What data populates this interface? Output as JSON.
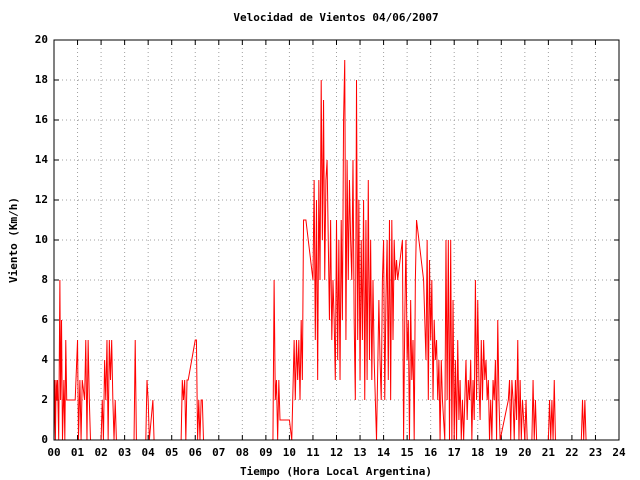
{
  "chart_data": {
    "type": "line",
    "title": "Velocidad de Vientos 04/06/2007",
    "x_label": "Tiempo (Hora Local Argentina)",
    "y_label": "Viento (Km/h)",
    "color": "#ff0000",
    "grid": true,
    "xlim": [
      0,
      24
    ],
    "ylim": [
      0,
      20
    ],
    "xticks": [
      {
        "value": 0,
        "label": "00"
      },
      {
        "value": 1,
        "label": "01"
      },
      {
        "value": 2,
        "label": "02"
      },
      {
        "value": 3,
        "label": "03"
      },
      {
        "value": 4,
        "label": "04"
      },
      {
        "value": 5,
        "label": "05"
      },
      {
        "value": 6,
        "label": "06"
      },
      {
        "value": 7,
        "label": "07"
      },
      {
        "value": 8,
        "label": "08"
      },
      {
        "value": 9,
        "label": "09"
      },
      10,
      11,
      12,
      13,
      14,
      15,
      16,
      17,
      18,
      19,
      20,
      21,
      22,
      23,
      24
    ],
    "yticks": [
      0,
      2,
      4,
      6,
      8,
      10,
      12,
      14,
      16,
      18,
      20
    ],
    "x": [
      0,
      0.03,
      0.06,
      0.09,
      0.12,
      0.15,
      0.2,
      0.25,
      0.28,
      0.32,
      0.36,
      0.42,
      0.46,
      0.5,
      0.54,
      0.7,
      0.9,
      1.0,
      1.04,
      1.1,
      1.15,
      1.2,
      1.3,
      1.35,
      1.4,
      1.45,
      1.5,
      1.55,
      1.6,
      2.0,
      2.05,
      2.1,
      2.15,
      2.2,
      2.25,
      2.3,
      2.35,
      2.4,
      2.45,
      2.5,
      2.55,
      2.6,
      2.65,
      3.0,
      3.4,
      3.45,
      3.5,
      3.9,
      3.95,
      4.0,
      4.05,
      4.2,
      4.25,
      5.4,
      5.45,
      5.5,
      5.55,
      5.6,
      5.65,
      5.7,
      6.0,
      6.05,
      6.1,
      6.15,
      6.2,
      6.25,
      6.3,
      6.35,
      9.3,
      9.35,
      9.4,
      9.45,
      9.5,
      9.55,
      9.6,
      10.0,
      10.1,
      10.2,
      10.25,
      10.3,
      10.35,
      10.4,
      10.45,
      10.5,
      10.55,
      10.6,
      10.7,
      11.0,
      11.05,
      11.1,
      11.15,
      11.2,
      11.25,
      11.3,
      11.35,
      11.4,
      11.45,
      11.5,
      11.55,
      11.6,
      11.65,
      11.7,
      11.75,
      11.8,
      11.85,
      11.9,
      11.95,
      12.0,
      12.05,
      12.1,
      12.15,
      12.2,
      12.25,
      12.3,
      12.35,
      12.4,
      12.45,
      12.5,
      12.55,
      12.6,
      12.65,
      12.7,
      12.75,
      12.8,
      12.85,
      12.9,
      12.95,
      13.0,
      13.05,
      13.1,
      13.15,
      13.2,
      13.25,
      13.3,
      13.35,
      13.4,
      13.45,
      13.5,
      13.55,
      13.6,
      13.7,
      13.8,
      13.85,
      13.9,
      13.95,
      14.0,
      14.05,
      14.1,
      14.15,
      14.2,
      14.25,
      14.3,
      14.35,
      14.4,
      14.45,
      14.5,
      14.55,
      14.6,
      14.7,
      14.8,
      14.85,
      14.9,
      14.95,
      15.0,
      15.05,
      15.1,
      15.15,
      15.2,
      15.25,
      15.3,
      15.35,
      15.4,
      15.5,
      15.6,
      15.7,
      15.8,
      15.85,
      15.9,
      15.95,
      16.0,
      16.05,
      16.1,
      16.15,
      16.2,
      16.25,
      16.3,
      16.35,
      16.4,
      16.45,
      16.5,
      16.6,
      16.65,
      16.7,
      16.75,
      16.8,
      16.85,
      16.9,
      16.95,
      17.0,
      17.05,
      17.1,
      17.15,
      17.2,
      17.25,
      17.3,
      17.35,
      17.4,
      17.5,
      17.55,
      17.6,
      17.65,
      17.7,
      17.75,
      17.8,
      17.85,
      17.9,
      17.95,
      18.0,
      18.05,
      18.1,
      18.15,
      18.2,
      18.25,
      18.3,
      18.35,
      18.4,
      18.45,
      18.5,
      18.55,
      18.6,
      18.65,
      18.7,
      18.75,
      18.8,
      18.85,
      18.9,
      18.95,
      19.3,
      19.35,
      19.4,
      19.45,
      19.5,
      19.55,
      19.6,
      19.65,
      19.7,
      19.75,
      19.8,
      19.85,
      19.9,
      20.0,
      20.05,
      20.1,
      20.3,
      20.35,
      20.4,
      20.45,
      20.5,
      21.0,
      21.05,
      21.1,
      21.15,
      21.2,
      21.25,
      21.3,
      22.4,
      22.45,
      22.5,
      22.55,
      22.6
    ],
    "values": [
      0,
      3,
      0,
      3,
      2,
      3,
      0,
      8,
      2,
      6,
      0,
      3,
      0,
      5,
      2,
      2,
      2,
      5,
      0,
      3,
      0,
      3,
      2,
      5,
      0,
      5,
      2,
      0,
      0,
      0,
      2,
      0,
      4,
      2,
      5,
      0,
      5,
      3,
      5,
      2,
      0,
      2,
      0,
      0,
      0,
      5,
      0,
      0,
      3,
      2,
      0,
      2,
      0,
      0,
      3,
      2,
      3,
      0,
      3,
      3,
      5,
      5,
      0,
      2,
      0,
      2,
      2,
      0,
      0,
      8,
      2,
      3,
      0,
      3,
      1,
      1,
      0,
      5,
      2,
      5,
      3,
      5,
      2,
      6,
      3,
      11,
      11,
      8,
      13,
      5,
      12,
      3,
      13,
      8,
      18,
      10,
      17,
      8,
      13,
      14,
      10,
      6,
      11,
      5,
      8,
      6,
      3,
      11,
      4,
      10,
      3,
      11,
      6,
      16,
      19,
      5,
      14,
      8,
      13,
      10,
      8,
      14,
      6,
      2,
      18,
      5,
      12,
      3,
      10,
      5,
      12,
      2,
      11,
      3,
      13,
      4,
      10,
      3,
      8,
      4,
      0,
      7,
      4,
      2,
      8,
      10,
      2,
      7,
      10,
      3,
      11,
      2,
      11,
      5,
      10,
      8,
      9,
      8,
      9,
      10,
      0,
      6,
      10,
      4,
      6,
      0,
      7,
      3,
      5,
      0,
      8,
      11,
      10,
      9,
      8,
      4,
      10,
      2,
      9,
      5,
      8,
      2,
      6,
      4,
      5,
      2,
      4,
      0,
      4,
      2,
      0,
      10,
      2,
      10,
      0,
      10,
      0,
      7,
      0,
      4,
      0,
      5,
      1,
      3,
      0,
      2,
      0,
      4,
      1,
      3,
      2,
      4,
      0,
      3,
      1,
      8,
      2,
      7,
      3,
      1,
      5,
      2,
      5,
      3,
      4,
      2,
      3,
      0,
      2,
      0,
      3,
      2,
      4,
      0,
      6,
      2,
      0,
      2,
      3,
      0,
      3,
      2,
      0,
      3,
      1,
      5,
      0,
      3,
      0,
      2,
      0,
      2,
      0,
      0,
      3,
      0,
      2,
      0,
      0,
      2,
      0,
      2,
      0,
      3,
      0,
      0,
      2,
      0,
      2,
      0
    ]
  }
}
